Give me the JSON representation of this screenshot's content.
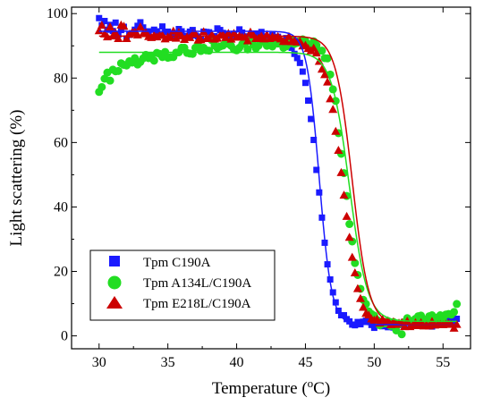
{
  "chart_data": {
    "type": "scatter",
    "title": "",
    "xlabel_main": "Temperature (",
    "xlabel_sup": "o",
    "xlabel_end": "C)",
    "ylabel": "Light scattering (%)",
    "xlim": [
      28,
      57
    ],
    "ylim": [
      -4,
      102
    ],
    "xticks": [
      30,
      35,
      40,
      45,
      50,
      55
    ],
    "yticks": [
      0,
      20,
      40,
      60,
      80,
      100
    ],
    "grid": false,
    "legend_position": "bottom-left",
    "series": [
      {
        "name": "Tpm C190A",
        "marker": "square",
        "color": "#1a1aff",
        "fit": {
          "top": 94.5,
          "bottom": 3.5,
          "tm": 46.0,
          "width": 0.45
        },
        "x": [
          30.0,
          30.2,
          30.4,
          30.6,
          30.8,
          31.0,
          31.2,
          31.4,
          31.6,
          31.8,
          32.0,
          32.2,
          32.4,
          32.6,
          32.8,
          33.0,
          33.2,
          33.4,
          33.6,
          33.8,
          34.0,
          34.2,
          34.4,
          34.6,
          34.8,
          35.0,
          35.2,
          35.4,
          35.6,
          35.8,
          36.0,
          36.2,
          36.4,
          36.6,
          36.8,
          37.0,
          37.2,
          37.4,
          37.6,
          37.8,
          38.0,
          38.2,
          38.4,
          38.6,
          38.8,
          39.0,
          39.2,
          39.4,
          39.6,
          39.8,
          40.0,
          40.2,
          40.4,
          40.6,
          40.8,
          41.0,
          41.2,
          41.4,
          41.6,
          41.8,
          42.0,
          42.2,
          42.4,
          42.6,
          42.8,
          43.0,
          43.2,
          43.4,
          43.6,
          43.8,
          44.0,
          44.2,
          44.4,
          44.6,
          44.8,
          45.0,
          45.2,
          45.4,
          45.6,
          45.8,
          46.0,
          46.2,
          46.4,
          46.6,
          46.8,
          47.0,
          47.2,
          47.4,
          47.6,
          47.8,
          48.0,
          48.2,
          48.4,
          48.6,
          48.8,
          49.0,
          49.2,
          49.4,
          49.6,
          49.8,
          50.0,
          50.2,
          50.4,
          50.6,
          50.8,
          51.0,
          51.2,
          51.4,
          51.6,
          51.8,
          52.0,
          52.2,
          52.4,
          52.6,
          52.8,
          53.0,
          53.2,
          53.4,
          53.6,
          53.8,
          54.0,
          54.2,
          54.4,
          54.6,
          54.8,
          55.0,
          55.2,
          55.4,
          55.6,
          55.8,
          56.0
        ],
        "y": [
          98.6,
          96.4,
          97.7,
          95.0,
          96.5,
          94.6,
          97.2,
          93.5,
          94.9,
          95.9,
          92.3,
          93.4,
          93.9,
          95.0,
          96.2,
          97.3,
          95.7,
          93.7,
          94.5,
          92.6,
          95.0,
          94.5,
          93.3,
          96.0,
          94.3,
          94.4,
          92.9,
          93.9,
          93.3,
          95.2,
          94.5,
          93.1,
          92.8,
          94.4,
          94.9,
          93.2,
          92.9,
          91.9,
          94.4,
          94.3,
          94.2,
          92.5,
          93.0,
          95.4,
          94.9,
          94.0,
          93.4,
          91.8,
          93.3,
          93.7,
          92.7,
          95.1,
          94.1,
          92.9,
          92.9,
          93.0,
          91.4,
          93.8,
          92.4,
          94.3,
          92.9,
          92.2,
          91.2,
          93.3,
          91.8,
          92.8,
          91.3,
          90.5,
          92.4,
          89.9,
          89.4,
          87.5,
          86.2,
          84.7,
          82.0,
          78.5,
          73.0,
          67.3,
          60.8,
          51.5,
          44.5,
          36.7,
          28.9,
          22.2,
          17.5,
          13.5,
          10.4,
          7.8,
          6.4,
          6.4,
          5.2,
          4.5,
          3.5,
          3.3,
          4.3,
          3.6,
          4.4,
          4.7,
          4.5,
          3.4,
          2.5,
          4.4,
          3.6,
          3.0,
          3.7,
          2.7,
          3.5,
          2.6,
          3.0,
          3.5,
          3.4,
          3.2,
          4.2,
          4.7,
          4.4,
          3.3,
          3.2,
          4.0,
          4.1,
          3.5,
          3.7,
          2.9,
          3.3,
          4.0,
          4.7,
          5.0,
          3.6,
          5.4,
          4.9,
          4.3,
          5.3
        ]
      },
      {
        "name": "Tpm A134L/C190A",
        "marker": "circle",
        "color": "#22dd22",
        "fit": {
          "top": 88.0,
          "bottom": 4.5,
          "tm": 48.2,
          "width": 0.65
        },
        "x": [
          30.0,
          30.2,
          30.4,
          30.6,
          30.8,
          31.0,
          31.2,
          31.4,
          31.6,
          31.8,
          32.0,
          32.2,
          32.4,
          32.6,
          32.8,
          33.0,
          33.2,
          33.4,
          33.6,
          33.8,
          34.0,
          34.2,
          34.4,
          34.6,
          34.8,
          35.0,
          35.2,
          35.4,
          35.6,
          35.8,
          36.0,
          36.2,
          36.4,
          36.6,
          36.8,
          37.0,
          37.2,
          37.4,
          37.6,
          37.8,
          38.0,
          38.2,
          38.4,
          38.6,
          38.8,
          39.0,
          39.2,
          39.4,
          39.6,
          39.8,
          40.0,
          40.2,
          40.4,
          40.6,
          40.8,
          41.0,
          41.2,
          41.4,
          41.6,
          41.8,
          42.0,
          42.2,
          42.4,
          42.6,
          42.8,
          43.0,
          43.2,
          43.4,
          43.6,
          43.8,
          44.0,
          44.2,
          44.4,
          44.6,
          44.8,
          45.0,
          45.2,
          45.4,
          45.6,
          45.8,
          46.0,
          46.2,
          46.4,
          46.6,
          46.8,
          47.0,
          47.2,
          47.4,
          47.6,
          47.8,
          48.0,
          48.2,
          48.4,
          48.6,
          48.8,
          49.0,
          49.2,
          49.4,
          49.6,
          49.8,
          50.0,
          50.2,
          50.4,
          50.6,
          50.8,
          51.0,
          51.2,
          51.4,
          51.6,
          51.8,
          52.0,
          52.2,
          52.4,
          52.6,
          52.8,
          53.0,
          53.2,
          53.4,
          53.6,
          53.8,
          54.0,
          54.2,
          54.4,
          54.6,
          54.8,
          55.0,
          55.2,
          55.4,
          55.6,
          55.8,
          56.0
        ],
        "y": [
          75.7,
          77.2,
          79.8,
          81.7,
          79.2,
          82.6,
          82.1,
          82.2,
          84.6,
          84.1,
          83.9,
          85.2,
          84.8,
          86.2,
          84.2,
          85.0,
          86.1,
          87.2,
          86.2,
          86.9,
          85.4,
          87.8,
          87.5,
          86.5,
          88.1,
          86.3,
          86.5,
          86.5,
          87.9,
          88.0,
          89.4,
          89.4,
          87.8,
          87.6,
          87.5,
          89.4,
          90.1,
          88.4,
          89.4,
          88.6,
          88.5,
          91.7,
          90.1,
          89.3,
          89.8,
          90.1,
          90.9,
          90.6,
          90.0,
          88.9,
          88.6,
          89.4,
          90.5,
          90.7,
          88.9,
          91.8,
          90.4,
          89.2,
          90.1,
          91.9,
          91.3,
          90.0,
          91.3,
          89.8,
          90.8,
          90.7,
          91.3,
          89.4,
          89.8,
          90.7,
          91.8,
          90.6,
          90.9,
          91.5,
          92.0,
          91.5,
          90.4,
          90.4,
          91.4,
          90.2,
          88.5,
          88.5,
          86.2,
          86.1,
          81.1,
          76.5,
          72.9,
          62.9,
          56.5,
          50.5,
          43.4,
          34.7,
          29.3,
          22.6,
          18.9,
          14.6,
          11.2,
          9.9,
          7.6,
          6.8,
          6.3,
          5.0,
          3.3,
          3.8,
          3.9,
          4.6,
          3.1,
          4.3,
          1.7,
          3.7,
          0.5,
          4.3,
          5.5,
          4.3,
          4.7,
          5.3,
          6.1,
          6.3,
          4.6,
          5.1,
          6.1,
          6.4,
          5.3,
          5.7,
          6.4,
          5.0,
          6.6,
          6.8,
          6.6,
          7.4,
          9.9
        ]
      },
      {
        "name": "Tpm E218L/C190A",
        "marker": "triangle",
        "color": "#cc0000",
        "fit": {
          "top": 93.0,
          "bottom": 3.5,
          "tm": 48.4,
          "width": 0.6
        },
        "x": [
          30.0,
          30.2,
          30.4,
          30.6,
          30.8,
          31.0,
          31.2,
          31.4,
          31.6,
          31.8,
          32.0,
          32.2,
          32.4,
          32.6,
          32.8,
          33.0,
          33.2,
          33.4,
          33.6,
          33.8,
          34.0,
          34.2,
          34.4,
          34.6,
          34.8,
          35.0,
          35.2,
          35.4,
          35.6,
          35.8,
          36.0,
          36.2,
          36.4,
          36.6,
          36.8,
          37.0,
          37.2,
          37.4,
          37.6,
          37.8,
          38.0,
          38.2,
          38.4,
          38.6,
          38.8,
          39.0,
          39.2,
          39.4,
          39.6,
          39.8,
          40.0,
          40.2,
          40.4,
          40.6,
          40.8,
          41.0,
          41.2,
          41.4,
          41.6,
          41.8,
          42.0,
          42.2,
          42.4,
          42.6,
          42.8,
          43.0,
          43.2,
          43.4,
          43.6,
          43.8,
          44.0,
          44.2,
          44.4,
          44.6,
          44.8,
          45.0,
          45.2,
          45.4,
          45.6,
          45.8,
          46.0,
          46.2,
          46.4,
          46.6,
          46.8,
          47.0,
          47.2,
          47.4,
          47.6,
          47.8,
          48.0,
          48.2,
          48.4,
          48.6,
          48.8,
          49.0,
          49.2,
          49.4,
          49.6,
          49.8,
          50.0,
          50.2,
          50.4,
          50.6,
          50.8,
          51.0,
          51.2,
          51.4,
          51.6,
          51.8,
          52.0,
          52.2,
          52.4,
          52.6,
          52.8,
          53.0,
          53.2,
          53.4,
          53.6,
          53.8,
          54.0,
          54.2,
          54.4,
          54.6,
          54.8,
          55.0,
          55.2,
          55.4,
          55.6,
          55.8,
          56.0
        ],
        "y": [
          94.7,
          96.4,
          93.7,
          92.8,
          95.9,
          93.1,
          94.0,
          92.3,
          96.5,
          96.1,
          92.3,
          93.6,
          94.2,
          94.3,
          93.4,
          95.9,
          93.8,
          94.1,
          92.9,
          92.6,
          93.3,
          92.8,
          93.3,
          93.3,
          92.2,
          92.8,
          92.6,
          94.6,
          92.4,
          94.2,
          93.1,
          92.0,
          92.8,
          92.6,
          93.7,
          93.7,
          91.8,
          91.9,
          94.4,
          92.3,
          92.3,
          93.5,
          92.1,
          92.4,
          93.3,
          93.5,
          92.6,
          93.9,
          92.1,
          93.9,
          92.7,
          93.1,
          92.7,
          92.7,
          91.6,
          94.3,
          93.4,
          92.3,
          92.4,
          93.1,
          92.2,
          93.5,
          92.3,
          92.9,
          92.5,
          92.9,
          92.2,
          91.4,
          91.4,
          92.9,
          91.3,
          91.6,
          91.2,
          91.4,
          90.0,
          90.2,
          89.2,
          88.5,
          89.3,
          87.8,
          85.2,
          82.8,
          81.1,
          78.8,
          73.6,
          70.3,
          63.5,
          57.6,
          50.7,
          43.7,
          37.1,
          30.6,
          24.4,
          19.6,
          14.7,
          11.6,
          8.9,
          7.0,
          6.5,
          5.3,
          4.9,
          5.2,
          4.0,
          5.2,
          4.3,
          4.7,
          3.5,
          4.4,
          3.6,
          4.0,
          4.2,
          2.9,
          4.6,
          2.9,
          3.3,
          4.1,
          3.2,
          4.1,
          3.1,
          3.5,
          3.1,
          4.5,
          3.4,
          3.5,
          3.6,
          3.5,
          3.7,
          3.9,
          3.6,
          2.4,
          3.6
        ]
      }
    ]
  }
}
